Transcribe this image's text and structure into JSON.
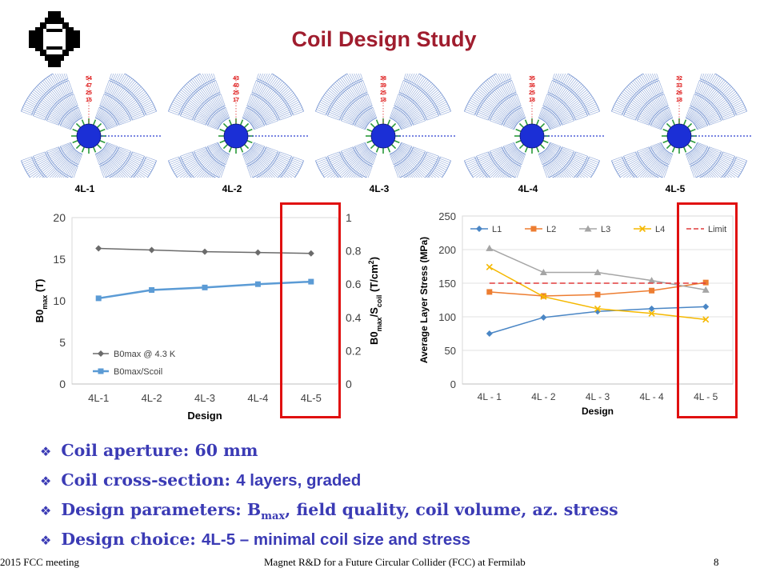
{
  "slide": {
    "title": "Coil Design Study"
  },
  "coils": [
    {
      "label": "4L-1",
      "numbers": [
        "54",
        "47",
        "25",
        "15"
      ]
    },
    {
      "label": "4L-2",
      "numbers": [
        "43",
        "40",
        "25",
        "17"
      ]
    },
    {
      "label": "4L-3",
      "numbers": [
        "38",
        "39",
        "25",
        "18"
      ]
    },
    {
      "label": "4L-4",
      "numbers": [
        "35",
        "36",
        "25",
        "18"
      ]
    },
    {
      "label": "4L-5",
      "numbers": [
        "32",
        "33",
        "26",
        "18"
      ]
    }
  ],
  "bullets": [
    {
      "lead": "Coil aperture: ",
      "rest": "60 mm",
      "rest_sub": "",
      "rest_tail": ""
    },
    {
      "lead": "Coil cross-section: ",
      "rest": "4 layers, graded",
      "rest_sub": "",
      "rest_tail": ""
    },
    {
      "lead": "Design parameters: B",
      "rest": "",
      "rest_sub": "max",
      "rest_tail": ", field quality, coil volume, az. stress"
    },
    {
      "lead": "Design choice: ",
      "rest": "4L-5 – minimal coil size and stress",
      "rest_sub": "",
      "rest_tail": ""
    }
  ],
  "footer": {
    "left": "2015 FCC meeting",
    "center": "Magnet R&D for a Future Circular Collider (FCC) at Fermilab",
    "page": "8"
  },
  "colors": {
    "title": "#a01d2e",
    "bullet": "#3b3bb5",
    "highlight": "#e01010"
  },
  "chart_data": [
    {
      "type": "line",
      "categories": [
        "4L-1",
        "4L-2",
        "4L-3",
        "4L-4",
        "4L-5"
      ],
      "xlabel": "Design",
      "ylabel_left": "B0max (T)",
      "ylabel_right": "B0max/Scoil (T/cm2)",
      "ylim_left": [
        0,
        20
      ],
      "yticks_left": [
        "0",
        "5",
        "10",
        "15",
        "20"
      ],
      "ylim_right": [
        0,
        1
      ],
      "yticks_right": [
        "0",
        "0.2",
        "0.4",
        "0.6",
        "0.8",
        "1"
      ],
      "legend_position": "bottom-left",
      "highlighted_category": "4L-5",
      "series": [
        {
          "name": "B0max @ 4.3 K",
          "axis": "left",
          "color": "#6b6b6b",
          "marker": "diamond",
          "values": [
            16.3,
            16.1,
            15.9,
            15.8,
            15.7
          ]
        },
        {
          "name": "B0max/Scoil",
          "axis": "right",
          "color": "#5b9bd5",
          "marker": "square",
          "values": [
            0.515,
            0.565,
            0.58,
            0.6,
            0.615
          ]
        }
      ]
    },
    {
      "type": "line",
      "categories": [
        "4L - 1",
        "4L - 2",
        "4L - 3",
        "4L - 4",
        "4L - 5"
      ],
      "xlabel": "Design",
      "ylabel": "Average Layer Stress (MPa)",
      "ylim": [
        0,
        250
      ],
      "yticks": [
        "0",
        "50",
        "100",
        "150",
        "200",
        "250"
      ],
      "legend_position": "top",
      "highlighted_category": "4L - 5",
      "series": [
        {
          "name": "L1",
          "color": "#4a86c5",
          "marker": "diamond",
          "values": [
            75,
            99,
            108,
            112,
            115
          ]
        },
        {
          "name": "L2",
          "color": "#ed7d31",
          "marker": "square",
          "values": [
            137,
            131,
            133,
            139,
            151
          ]
        },
        {
          "name": "L3",
          "color": "#a5a5a5",
          "marker": "triangle",
          "values": [
            202,
            166,
            166,
            154,
            140
          ]
        },
        {
          "name": "L4",
          "color": "#f5b800",
          "marker": "x",
          "values": [
            174,
            130,
            112,
            105,
            96
          ]
        },
        {
          "name": "Limit",
          "color": "#e03c3c",
          "marker": "none",
          "dashed": true,
          "values": [
            150,
            150,
            150,
            150,
            150
          ]
        }
      ]
    }
  ]
}
